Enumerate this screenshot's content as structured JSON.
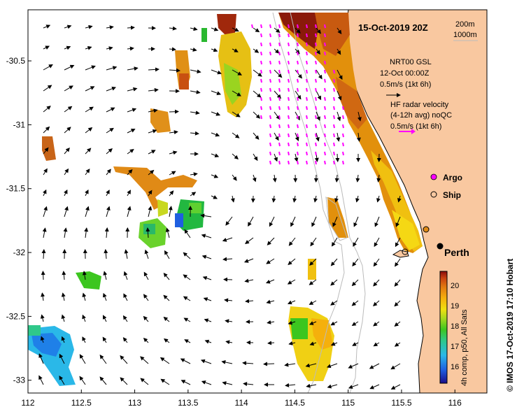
{
  "title": "15-Oct-2019 20Z",
  "depth_labels": [
    "200m",
    "1000m"
  ],
  "geostrophic": {
    "line1": "NRT00 GSL",
    "line2": "12-Oct 00:00Z",
    "scale": "0.5m/s (1kt 6h)"
  },
  "hf_radar": {
    "line1": "HF radar velocity",
    "line2": "(4-12h avg) noQC",
    "scale": "0.5m/s (1kt 6h)"
  },
  "legend": {
    "argo": "Argo",
    "ship": "Ship"
  },
  "place_labels": [
    "Perth"
  ],
  "colorbar": {
    "ticks": [
      "20",
      "19",
      "18",
      "17",
      "16"
    ],
    "caption": "4h comp, p50, All Sats",
    "colors": [
      "#1a0d8a",
      "#1f5fe0",
      "#2ab8e8",
      "#2fc88a",
      "#3cc61f",
      "#a8d81d",
      "#f0e010",
      "#f5b00c",
      "#e27a10",
      "#c84010",
      "#8a0a0a"
    ]
  },
  "credit": "© IMOS 17-Oct-2019 17:10 Hobart",
  "axes": {
    "x_ticks": [
      "112",
      "112.5",
      "113",
      "113.5",
      "114",
      "114.5",
      "115",
      "115.5",
      "116"
    ],
    "y_ticks": [
      "-30.5",
      "-31",
      "-31.5",
      "-32",
      "-32.5",
      "-33"
    ],
    "lon_range": [
      112,
      116.3
    ],
    "lat_range": [
      -33.1,
      -30.1
    ]
  },
  "colors": {
    "land": "#f9c8a0",
    "arrow": "#000000",
    "radar_arrow": "#ff00ff",
    "contour": "#bbbbbb"
  }
}
